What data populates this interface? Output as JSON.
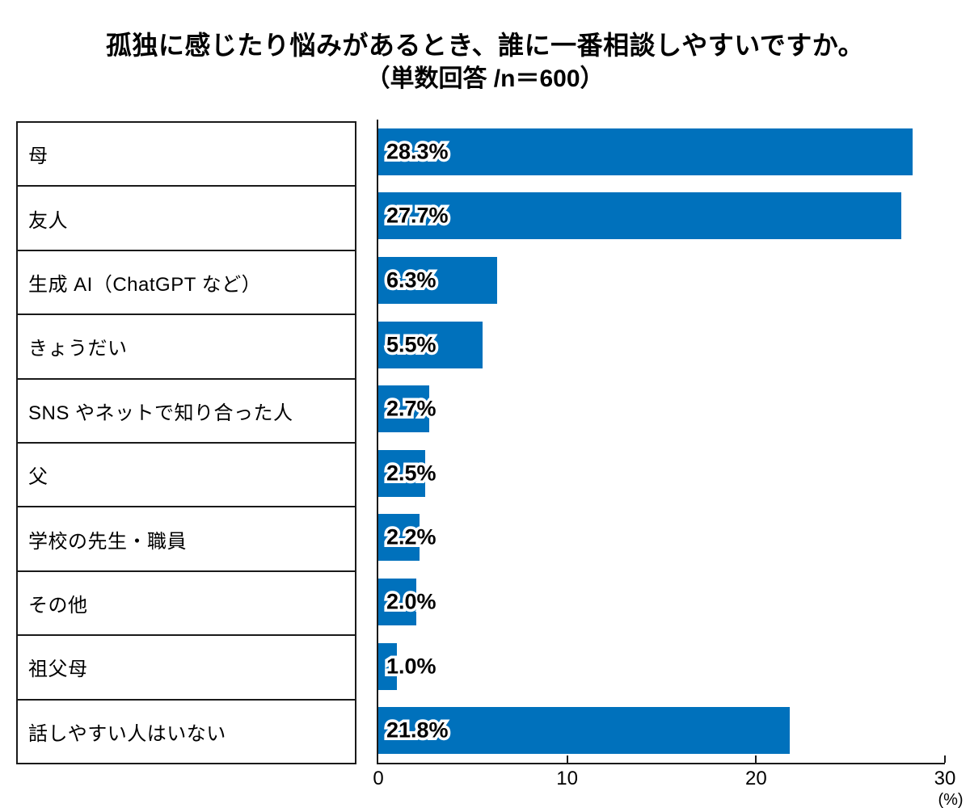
{
  "title": {
    "line1": "孤独に感じたり悩みがあるとき、誰に一番相談しやすいですか。",
    "line2": "（単数回答 /n＝600）"
  },
  "chart_data": {
    "type": "bar",
    "orientation": "horizontal",
    "title": "孤独に感じたり悩みがあるとき、誰に一番相談しやすいですか。（単数回答 /n＝600）",
    "sample_size": "n＝600",
    "categories": [
      "母",
      "友人",
      "生成 AI（ChatGPT など）",
      "きょうだい",
      "SNS やネットで知り合った人",
      "父",
      "学校の先生・職員",
      "その他",
      "祖父母",
      "話しやすい人はいない"
    ],
    "values": [
      28.3,
      27.7,
      6.3,
      5.5,
      2.7,
      2.5,
      2.2,
      2.0,
      1.0,
      21.8
    ],
    "value_labels": [
      "28.3%",
      "27.7%",
      "6.3%",
      "5.5%",
      "2.7%",
      "2.5%",
      "2.2%",
      "2.0%",
      "1.0%",
      "21.8%"
    ],
    "xlim": [
      0,
      30
    ],
    "x_ticks": [
      0,
      10,
      20,
      30
    ],
    "x_unit": "(%)",
    "bar_color": "#0071BC",
    "grid": false,
    "legend": false
  }
}
